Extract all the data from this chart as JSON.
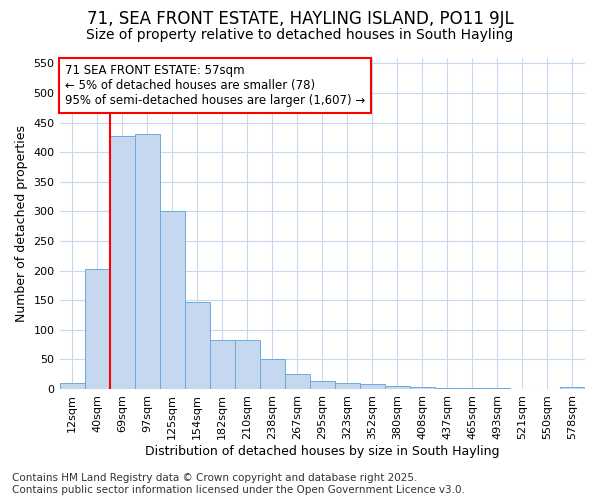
{
  "title_line1": "71, SEA FRONT ESTATE, HAYLING ISLAND, PO11 9JL",
  "title_line2": "Size of property relative to detached houses in South Hayling",
  "xlabel": "Distribution of detached houses by size in South Hayling",
  "ylabel": "Number of detached properties",
  "categories": [
    "12sqm",
    "40sqm",
    "69sqm",
    "97sqm",
    "125sqm",
    "154sqm",
    "182sqm",
    "210sqm",
    "238sqm",
    "267sqm",
    "295sqm",
    "323sqm",
    "352sqm",
    "380sqm",
    "408sqm",
    "437sqm",
    "465sqm",
    "493sqm",
    "521sqm",
    "550sqm",
    "578sqm"
  ],
  "values": [
    10,
    203,
    428,
    430,
    301,
    147,
    83,
    83,
    50,
    25,
    13,
    10,
    8,
    5,
    3,
    2,
    1,
    1,
    0,
    0,
    4
  ],
  "bar_color": "#c5d8ef",
  "bar_edge_color": "#6aabdb",
  "vline_x": 1.5,
  "vline_color": "red",
  "annotation_text": "71 SEA FRONT ESTATE: 57sqm\n← 5% of detached houses are smaller (78)\n95% of semi-detached houses are larger (1,607) →",
  "annotation_box_facecolor": "white",
  "annotation_box_edgecolor": "red",
  "ylim": [
    0,
    560
  ],
  "yticks": [
    0,
    50,
    100,
    150,
    200,
    250,
    300,
    350,
    400,
    450,
    500,
    550
  ],
  "background_color": "#ffffff",
  "grid_color": "#c8d8ee",
  "title_fontsize": 12,
  "subtitle_fontsize": 10,
  "axis_label_fontsize": 9,
  "tick_fontsize": 8,
  "annotation_fontsize": 8.5,
  "footer_fontsize": 7.5,
  "footer_line1": "Contains HM Land Registry data © Crown copyright and database right 2025.",
  "footer_line2": "Contains public sector information licensed under the Open Government Licence v3.0."
}
